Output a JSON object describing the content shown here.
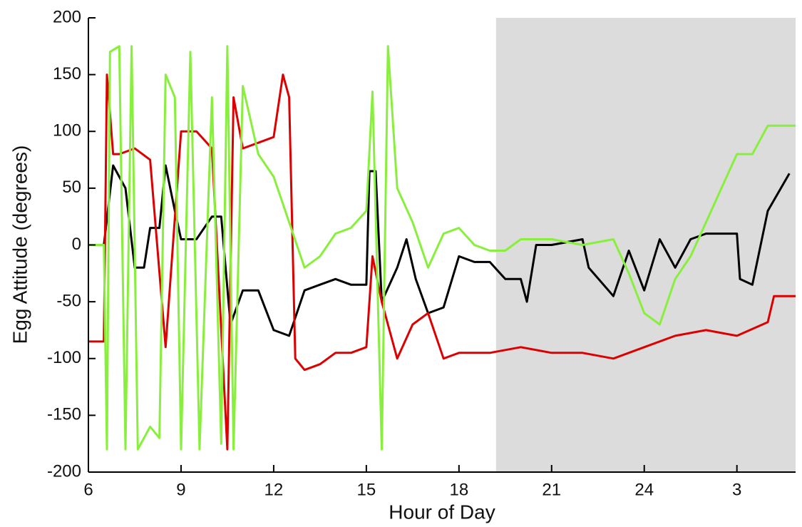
{
  "chart_data": {
    "type": "line",
    "x_label": "Hour of Day",
    "y_label": "Egg Attitude (degrees)",
    "xlim": [
      6,
      28.9
    ],
    "ylim": [
      -200,
      200
    ],
    "xticks": [
      6,
      9,
      12,
      15,
      18,
      21,
      24,
      {
        "value": 27,
        "label": "3"
      }
    ],
    "yticks": [
      -200,
      -150,
      -100,
      -50,
      0,
      50,
      100,
      150,
      200
    ],
    "shaded_region": [
      19.2,
      28.9
    ],
    "shade_color": "#dcdcdc",
    "series": [
      {
        "name": "black",
        "color": "#000000",
        "x": [
          6,
          6.5,
          6.8,
          7.2,
          7.5,
          7.8,
          8,
          8.3,
          8.5,
          8.8,
          9,
          9.5,
          10,
          10.3,
          10.6,
          11,
          11.5,
          12,
          12.5,
          13,
          13.5,
          14,
          14.5,
          15,
          15.1,
          15.3,
          15.5,
          16,
          16.3,
          16.6,
          17,
          17.5,
          18,
          18.5,
          19,
          19.5,
          20,
          20.2,
          20.5,
          21,
          22,
          22.2,
          23,
          23.5,
          24,
          24.5,
          25,
          25.5,
          26,
          27,
          27.1,
          27.5,
          28,
          28.7
        ],
        "values": [
          0,
          0,
          70,
          50,
          -20,
          -20,
          15,
          15,
          70,
          30,
          5,
          5,
          25,
          25,
          -70,
          -40,
          -40,
          -75,
          -80,
          -40,
          -35,
          -30,
          -35,
          -35,
          65,
          65,
          -50,
          -20,
          5,
          -30,
          -60,
          -55,
          -10,
          -15,
          -15,
          -30,
          -30,
          -50,
          0,
          0,
          5,
          -20,
          -45,
          -5,
          -40,
          5,
          -20,
          5,
          10,
          10,
          -30,
          -35,
          30,
          63
        ]
      },
      {
        "name": "red",
        "color": "#dd0000",
        "x": [
          6,
          6.5,
          6.6,
          6.8,
          7,
          7.5,
          8,
          8.5,
          9,
          9.5,
          10,
          10.5,
          10.7,
          11,
          11.5,
          12,
          12.3,
          12.5,
          12.7,
          13,
          13.5,
          14,
          14.5,
          15,
          15.2,
          15.5,
          15.8,
          16,
          16.5,
          17,
          17.5,
          18,
          19,
          20,
          21,
          22,
          23,
          24,
          25,
          26,
          27,
          28,
          28.2,
          28.9
        ],
        "values": [
          -85,
          -85,
          150,
          80,
          80,
          85,
          75,
          -90,
          100,
          100,
          85,
          -180,
          130,
          85,
          90,
          95,
          150,
          130,
          -100,
          -110,
          -105,
          -95,
          -95,
          -90,
          -10,
          -50,
          -80,
          -100,
          -70,
          -60,
          -100,
          -95,
          -95,
          -90,
          -95,
          -95,
          -100,
          -90,
          -80,
          -75,
          -80,
          -68,
          -45,
          -45
        ]
      },
      {
        "name": "green",
        "color": "#88f03c",
        "x": [
          6,
          6.5,
          6.6,
          6.7,
          7,
          7.2,
          7.4,
          7.6,
          8,
          8.3,
          8.5,
          8.8,
          9,
          9.3,
          9.6,
          10,
          10.3,
          10.5,
          10.7,
          11,
          11.5,
          12,
          12.5,
          13,
          13.5,
          14,
          14.5,
          15,
          15.2,
          15.5,
          15.7,
          16,
          16.5,
          17,
          17.5,
          18,
          18.5,
          19,
          19.5,
          20,
          21,
          22,
          23,
          23.5,
          24,
          24.5,
          25,
          25.5,
          26,
          26.5,
          27,
          27.5,
          28,
          28.9
        ],
        "values": [
          0,
          0,
          -180,
          170,
          175,
          -180,
          175,
          -180,
          -160,
          -170,
          150,
          130,
          -180,
          170,
          -180,
          130,
          -175,
          175,
          -180,
          140,
          80,
          60,
          20,
          -20,
          -10,
          10,
          15,
          30,
          135,
          -180,
          175,
          50,
          20,
          -20,
          10,
          15,
          0,
          -5,
          -5,
          5,
          5,
          0,
          5,
          -25,
          -60,
          -70,
          -30,
          -10,
          20,
          50,
          80,
          80,
          105,
          105
        ]
      }
    ]
  }
}
